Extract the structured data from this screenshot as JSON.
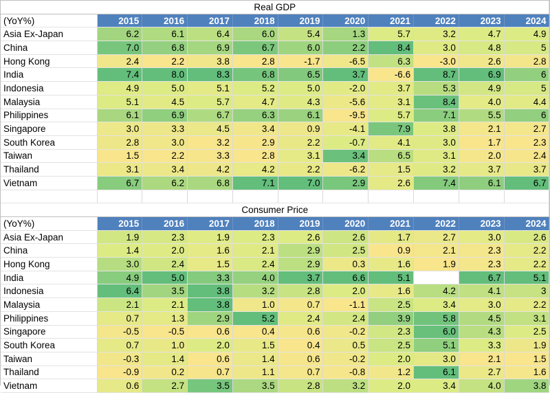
{
  "chart_data": [
    {
      "type": "table",
      "title": "Real GDP",
      "unit_label": "(YoY%)",
      "columns": [
        "2015",
        "2016",
        "2017",
        "2018",
        "2019",
        "2020",
        "2021",
        "2022",
        "2023",
        "2024"
      ],
      "rows": [
        {
          "label": "Asia Ex-Japan",
          "values": [
            "6.2",
            "6.1",
            "6.4",
            "6.0",
            "5.4",
            "1.3",
            "5.7",
            "3.2",
            "4.7",
            "4.9"
          ]
        },
        {
          "label": "China",
          "values": [
            "7.0",
            "6.8",
            "6.9",
            "6.7",
            "6.0",
            "2.2",
            "8.4",
            "3.0",
            "4.8",
            "5"
          ]
        },
        {
          "label": "Hong Kong",
          "values": [
            "2.4",
            "2.2",
            "3.8",
            "2.8",
            "-1.7",
            "-6.5",
            "6.3",
            "-3.0",
            "2.6",
            "2.8"
          ]
        },
        {
          "label": "India",
          "values": [
            "7.4",
            "8.0",
            "8.3",
            "6.8",
            "6.5",
            "3.7",
            "-6.6",
            "8.7",
            "6.9",
            "6"
          ]
        },
        {
          "label": "Indonesia",
          "values": [
            "4.9",
            "5.0",
            "5.1",
            "5.2",
            "5.0",
            "-2.0",
            "3.7",
            "5.3",
            "4.9",
            "5"
          ]
        },
        {
          "label": "Malaysia",
          "values": [
            "5.1",
            "4.5",
            "5.7",
            "4.7",
            "4.3",
            "-5.6",
            "3.1",
            "8.4",
            "4.0",
            "4.4"
          ]
        },
        {
          "label": "Philippines",
          "values": [
            "6.1",
            "6.9",
            "6.7",
            "6.3",
            "6.1",
            "-9.5",
            "5.7",
            "7.1",
            "5.5",
            "6"
          ]
        },
        {
          "label": "Singapore",
          "values": [
            "3.0",
            "3.3",
            "4.5",
            "3.4",
            "0.9",
            "-4.1",
            "7.9",
            "3.8",
            "2.1",
            "2.7"
          ]
        },
        {
          "label": "South Korea",
          "values": [
            "2.8",
            "3.0",
            "3.2",
            "2.9",
            "2.2",
            "-0.7",
            "4.1",
            "3.0",
            "1.7",
            "2.3"
          ]
        },
        {
          "label": "Taiwan",
          "values": [
            "1.5",
            "2.2",
            "3.3",
            "2.8",
            "3.1",
            "3.4",
            "6.5",
            "3.1",
            "2.0",
            "2.4"
          ]
        },
        {
          "label": "Thailand",
          "values": [
            "3.1",
            "3.4",
            "4.2",
            "4.2",
            "2.2",
            "-6.2",
            "1.5",
            "3.2",
            "3.7",
            "3.7"
          ]
        },
        {
          "label": "Vietnam",
          "values": [
            "6.7",
            "6.2",
            "6.8",
            "7.1",
            "7.0",
            "2.9",
            "2.6",
            "7.4",
            "6.1",
            "6.7"
          ]
        }
      ]
    },
    {
      "type": "table",
      "title": "Consumer Price",
      "unit_label": "(YoY%)",
      "columns": [
        "2015",
        "2016",
        "2017",
        "2018",
        "2019",
        "2020",
        "2021",
        "2022",
        "2023",
        "2024"
      ],
      "rows": [
        {
          "label": "Asia Ex-Japan",
          "values": [
            "1.9",
            "2.3",
            "1.9",
            "2.3",
            "2.6",
            "2.6",
            "1.7",
            "2.7",
            "3.0",
            "2.6"
          ]
        },
        {
          "label": "China",
          "values": [
            "1.4",
            "2.0",
            "1.6",
            "2.1",
            "2.9",
            "2.5",
            "0.9",
            "2.1",
            "2.3",
            "2.2"
          ]
        },
        {
          "label": "Hong Kong",
          "values": [
            "3.0",
            "2.4",
            "1.5",
            "2.4",
            "2.9",
            "0.3",
            "1.6",
            "1.9",
            "2.3",
            "2.2"
          ]
        },
        {
          "label": "India",
          "values": [
            "4.9",
            "5.0",
            "3.3",
            "4.0",
            "3.7",
            "6.6",
            "5.1",
            "",
            "6.7",
            "5.1"
          ]
        },
        {
          "label": "Indonesia",
          "values": [
            "6.4",
            "3.5",
            "3.8",
            "3.2",
            "2.8",
            "2.0",
            "1.6",
            "4.2",
            "4.1",
            "3"
          ]
        },
        {
          "label": "Malaysia",
          "values": [
            "2.1",
            "2.1",
            "3.8",
            "1.0",
            "0.7",
            "-1.1",
            "2.5",
            "3.4",
            "3.0",
            "2.2"
          ]
        },
        {
          "label": "Philippines",
          "values": [
            "0.7",
            "1.3",
            "2.9",
            "5.2",
            "2.4",
            "2.4",
            "3.9",
            "5.8",
            "4.5",
            "3.1"
          ]
        },
        {
          "label": "Singapore",
          "values": [
            "-0.5",
            "-0.5",
            "0.6",
            "0.4",
            "0.6",
            "-0.2",
            "2.3",
            "6.0",
            "4.3",
            "2.5"
          ]
        },
        {
          "label": "South Korea",
          "values": [
            "0.7",
            "1.0",
            "2.0",
            "1.5",
            "0.4",
            "0.5",
            "2.5",
            "5.1",
            "3.3",
            "1.9"
          ]
        },
        {
          "label": "Taiwan",
          "values": [
            "-0.3",
            "1.4",
            "0.6",
            "1.4",
            "0.6",
            "-0.2",
            "2.0",
            "3.0",
            "2.1",
            "1.5"
          ]
        },
        {
          "label": "Thailand",
          "values": [
            "-0.9",
            "0.2",
            "0.7",
            "1.1",
            "0.7",
            "-0.8",
            "1.2",
            "6.1",
            "2.7",
            "1.6"
          ]
        },
        {
          "label": "Vietnam",
          "values": [
            "0.6",
            "2.7",
            "3.5",
            "3.5",
            "2.8",
            "3.2",
            "2.0",
            "3.4",
            "4.0",
            "3.8"
          ]
        }
      ]
    }
  ],
  "colors": {
    "header_fill": "#4f81bd",
    "header_text": "#ffffff",
    "scale_low": "#f8e58c",
    "scale_mid": "#ddeb84",
    "scale_high": "#63be7b"
  }
}
